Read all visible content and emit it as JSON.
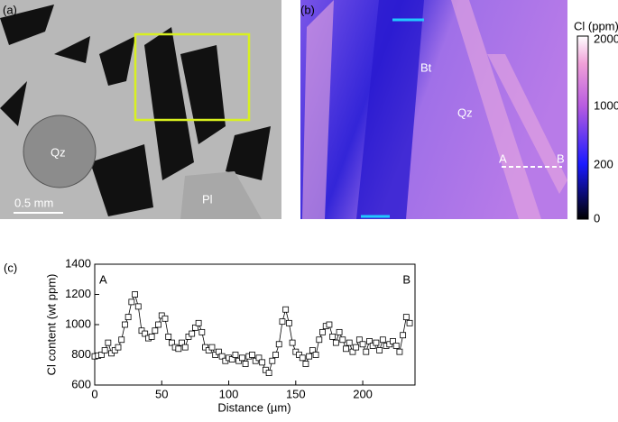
{
  "panels": {
    "a": {
      "label": "(a)",
      "mineral_1": "Qz",
      "mineral_2": "Pl",
      "scale": "0.5 mm"
    },
    "b": {
      "label": "(b)",
      "mineral_1": "Bt",
      "mineral_2": "Qz",
      "point_a": "A",
      "point_b": "B",
      "colorbar_title": "Cl (ppm)",
      "colorbar_labels": [
        "2000",
        "1000",
        "200",
        "0"
      ]
    },
    "c": {
      "label": "(c)"
    }
  },
  "chart_data": {
    "type": "line",
    "x_label": "Distance (µm)",
    "y_label": "Cl content (wt ppm)",
    "annotations": [
      "A",
      "B"
    ],
    "x": [
      0,
      2.5,
      5,
      7.5,
      10,
      12.5,
      15,
      17.5,
      20,
      22.5,
      25,
      27.5,
      30,
      32.5,
      35,
      37.5,
      40,
      42.5,
      45,
      47.5,
      50,
      52.5,
      55,
      57.5,
      60,
      62.5,
      65,
      67.5,
      70,
      72.5,
      75,
      77.5,
      80,
      82.5,
      85,
      87.5,
      90,
      92.5,
      95,
      97.5,
      100,
      102.5,
      105,
      107.5,
      110,
      112.5,
      115,
      117.5,
      120,
      122.5,
      125,
      127.5,
      130,
      132.5,
      135,
      137.5,
      140,
      142.5,
      145,
      147.5,
      150,
      152.5,
      155,
      157.5,
      160,
      162.5,
      165,
      167.5,
      170,
      172.5,
      175,
      177.5,
      180,
      182.5,
      185,
      187.5,
      190,
      192.5,
      195,
      197.5,
      200,
      202.5,
      205,
      207.5,
      210,
      212.5,
      215,
      217.5,
      220,
      222.5,
      225,
      227.5,
      230,
      232.5,
      235
    ],
    "series": [
      {
        "color": "#000000",
        "values": [
          790,
          795,
          800,
          830,
          880,
          810,
          830,
          850,
          900,
          1000,
          1050,
          1150,
          1200,
          1120,
          960,
          940,
          910,
          920,
          960,
          1000,
          1060,
          1040,
          920,
          880,
          850,
          840,
          880,
          850,
          920,
          940,
          980,
          1010,
          950,
          850,
          830,
          850,
          800,
          820,
          790,
          760,
          780,
          770,
          800,
          760,
          780,
          740,
          790,
          800,
          760,
          780,
          750,
          700,
          680,
          760,
          800,
          870,
          1020,
          1100,
          1010,
          880,
          820,
          800,
          780,
          740,
          790,
          830,
          800,
          900,
          950,
          990,
          1000,
          920,
          880,
          950,
          900,
          840,
          880,
          820,
          850,
          900,
          870,
          820,
          890,
          860,
          880,
          830,
          900,
          860,
          870,
          890,
          860,
          820,
          930,
          1050,
          1010
        ]
      }
    ],
    "xlim": [
      0,
      239
    ],
    "xticks": [
      0,
      50,
      100,
      150,
      200
    ],
    "ylim": [
      600,
      1400
    ],
    "yticks": [
      600,
      800,
      1000,
      1200,
      1400
    ]
  }
}
